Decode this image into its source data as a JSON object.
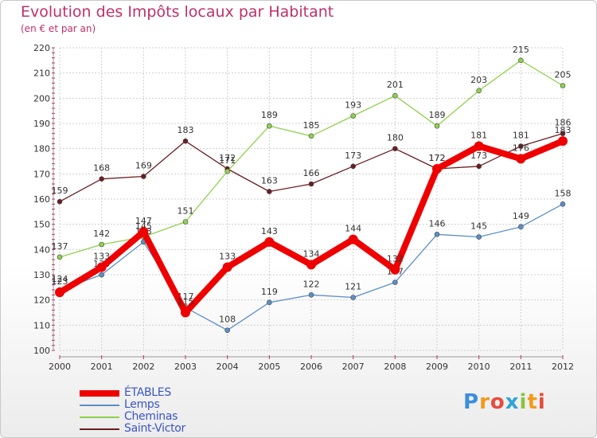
{
  "chart_data": {
    "type": "line",
    "title": "Evolution des Impôts locaux par Habitant",
    "subtitle": "(en € et par an)",
    "x": [
      "2000",
      "2001",
      "2002",
      "2003",
      "2004",
      "2005",
      "2006",
      "2007",
      "2008",
      "2009",
      "2010",
      "2011",
      "2012"
    ],
    "ylim": [
      100,
      220
    ],
    "yticks": [
      100,
      110,
      120,
      130,
      140,
      150,
      160,
      170,
      180,
      190,
      200,
      210,
      220
    ],
    "series": [
      {
        "name": "ÉTABLES",
        "color": "#ee0000",
        "values": [
          123,
          133,
          147,
          115,
          133,
          143,
          134,
          144,
          132,
          172,
          181,
          176,
          183
        ]
      },
      {
        "name": "Lemps",
        "color": "#5b8fc7",
        "values": [
          124,
          130,
          143,
          117,
          108,
          119,
          122,
          121,
          127,
          146,
          145,
          149,
          158
        ]
      },
      {
        "name": "Cheminas",
        "color": "#8fd14f",
        "values": [
          137,
          142,
          145,
          151,
          171,
          189,
          185,
          193,
          201,
          189,
          203,
          215,
          205
        ]
      },
      {
        "name": "Saint-Victor",
        "color": "#6b1e22",
        "values": [
          159,
          168,
          169,
          183,
          172,
          163,
          166,
          173,
          180,
          172,
          173,
          181,
          186
        ]
      }
    ]
  },
  "logo": {
    "letters": [
      "P",
      "r",
      "o",
      "x",
      "i",
      "t",
      "i"
    ],
    "colors": [
      "#3a8de0",
      "#f29a1b",
      "#e84a3c",
      "#2fa3d8",
      "#8ac43f",
      "#f29a1b",
      "#e84a3c"
    ]
  }
}
